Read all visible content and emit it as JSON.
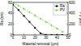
{
  "chart_data": {
    "type": "line",
    "x_label": "Material removal (µm)",
    "y_label": "Ra (nm)",
    "y2_label": "PV (nm)",
    "x": [
      0,
      5,
      10,
      15,
      20,
      25,
      30,
      35,
      40,
      45
    ],
    "xlim": [
      0,
      50
    ],
    "xticks": [
      0,
      10,
      20,
      30,
      40,
      50
    ],
    "ylim": [
      0,
      60
    ],
    "yticks": [
      0,
      20,
      40,
      60
    ],
    "y2lim": [
      0,
      600
    ],
    "y2ticks": [
      0,
      200,
      400,
      600
    ],
    "legend": "upper right",
    "series": [
      {
        "name": "Ra",
        "color": "#000000",
        "marker": "square",
        "line_style": "solid",
        "values": [
          56,
          46,
          35,
          24,
          13,
          3,
          0,
          0,
          0,
          0
        ]
      },
      {
        "name": "PV",
        "color": "#66cc33",
        "marker": "triangle",
        "line_style": "dashed",
        "axis": "y2",
        "values": [
          590,
          540,
          480,
          420,
          360,
          300,
          240,
          180,
          120,
          60
        ]
      }
    ]
  }
}
